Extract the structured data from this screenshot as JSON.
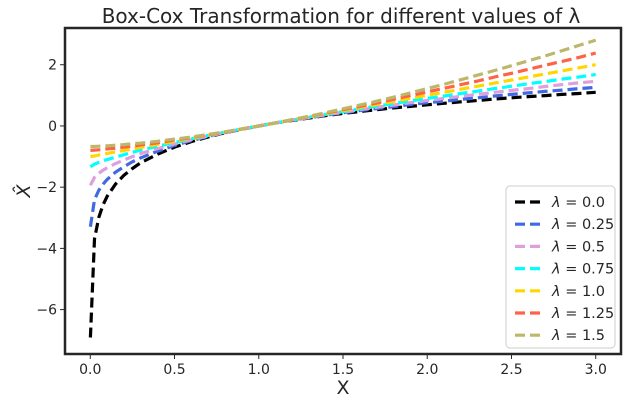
{
  "chart_data": {
    "type": "line",
    "title": "Box-Cox Transformation for different values of λ",
    "xlabel": "X",
    "ylabel": "X̂",
    "xlim": [
      -0.15,
      3.15
    ],
    "ylim": [
      -7.45,
      3.2
    ],
    "xticks": [
      0.0,
      0.5,
      1.0,
      1.5,
      2.0,
      2.5,
      3.0
    ],
    "xtick_labels": [
      "0.0",
      "0.5",
      "1.0",
      "1.5",
      "2.0",
      "2.5",
      "3.0"
    ],
    "yticks": [
      -6,
      -4,
      -2,
      0,
      2
    ],
    "ytick_labels": [
      "−6",
      "−4",
      "−2",
      "0",
      "2"
    ],
    "grid": false,
    "legend_position": "lower-right",
    "x": [
      0.001,
      0.025,
      0.05,
      0.075,
      0.1,
      0.15,
      0.2,
      0.25,
      0.3,
      0.4,
      0.5,
      0.6,
      0.7,
      0.8,
      0.9,
      1.0,
      1.1,
      1.2,
      1.3,
      1.4,
      1.5,
      1.6,
      1.7,
      1.8,
      1.9,
      2.0,
      2.1,
      2.2,
      2.3,
      2.4,
      2.5,
      2.6,
      2.7,
      2.8,
      2.9,
      3.0
    ],
    "series": [
      {
        "name": "λ = 0.0",
        "label_lambda": "λ",
        "label_value": "= 0.0",
        "color": "#000000",
        "values": [
          -6.91,
          -3.69,
          -3.0,
          -2.59,
          -2.3,
          -1.9,
          -1.61,
          -1.39,
          -1.2,
          -0.92,
          -0.69,
          -0.51,
          -0.36,
          -0.22,
          -0.11,
          0.0,
          0.1,
          0.18,
          0.26,
          0.34,
          0.41,
          0.47,
          0.53,
          0.59,
          0.64,
          0.69,
          0.74,
          0.79,
          0.83,
          0.88,
          0.92,
          0.96,
          0.99,
          1.03,
          1.06,
          1.1
        ]
      },
      {
        "name": "λ = 0.25",
        "label_lambda": "λ",
        "label_value": "= 0.25",
        "color": "#4169e1",
        "values": [
          -3.29,
          -2.41,
          -2.11,
          -1.91,
          -1.75,
          -1.51,
          -1.33,
          -1.17,
          -1.04,
          -0.82,
          -0.64,
          -0.48,
          -0.34,
          -0.22,
          -0.1,
          0.0,
          0.1,
          0.19,
          0.27,
          0.35,
          0.43,
          0.5,
          0.57,
          0.63,
          0.7,
          0.76,
          0.81,
          0.87,
          0.92,
          0.98,
          1.03,
          1.08,
          1.13,
          1.17,
          1.22,
          1.26
        ]
      },
      {
        "name": "λ = 0.5",
        "label_lambda": "λ",
        "label_value": "= 0.5",
        "color": "#dda0dd",
        "values": [
          -1.94,
          -1.68,
          -1.55,
          -1.45,
          -1.37,
          -1.23,
          -1.11,
          -1.0,
          -0.9,
          -0.74,
          -0.59,
          -0.45,
          -0.33,
          -0.21,
          -0.1,
          0.0,
          0.1,
          0.19,
          0.28,
          0.37,
          0.45,
          0.53,
          0.61,
          0.68,
          0.76,
          0.83,
          0.9,
          0.97,
          1.03,
          1.1,
          1.16,
          1.22,
          1.29,
          1.35,
          1.41,
          1.46
        ]
      },
      {
        "name": "λ = 0.75",
        "label_lambda": "λ",
        "label_value": "= 0.75",
        "color": "#00ffff",
        "values": [
          -1.33,
          -1.25,
          -1.19,
          -1.14,
          -1.1,
          -1.02,
          -0.94,
          -0.86,
          -0.79,
          -0.66,
          -0.54,
          -0.42,
          -0.31,
          -0.2,
          -0.1,
          0.0,
          0.1,
          0.19,
          0.29,
          0.38,
          0.47,
          0.56,
          0.65,
          0.73,
          0.82,
          0.9,
          0.98,
          1.06,
          1.14,
          1.22,
          1.3,
          1.38,
          1.45,
          1.53,
          1.6,
          1.68
        ]
      },
      {
        "name": "λ = 1.0",
        "label_lambda": "λ",
        "label_value": "= 1.0",
        "color": "#ffd700",
        "values": [
          -1.0,
          -0.98,
          -0.95,
          -0.93,
          -0.9,
          -0.85,
          -0.8,
          -0.75,
          -0.7,
          -0.6,
          -0.5,
          -0.4,
          -0.3,
          -0.2,
          -0.1,
          0.0,
          0.1,
          0.2,
          0.3,
          0.4,
          0.5,
          0.6,
          0.7,
          0.8,
          0.9,
          1.0,
          1.1,
          1.2,
          1.3,
          1.4,
          1.5,
          1.6,
          1.7,
          1.8,
          1.9,
          2.0
        ]
      },
      {
        "name": "λ = 1.25",
        "label_lambda": "λ",
        "label_value": "= 1.25",
        "color": "#ff6347",
        "values": [
          -0.8,
          -0.79,
          -0.78,
          -0.77,
          -0.75,
          -0.73,
          -0.69,
          -0.66,
          -0.62,
          -0.55,
          -0.46,
          -0.38,
          -0.29,
          -0.2,
          -0.1,
          0.0,
          0.1,
          0.2,
          0.31,
          0.42,
          0.53,
          0.64,
          0.75,
          0.87,
          0.99,
          1.11,
          1.23,
          1.35,
          1.47,
          1.6,
          1.72,
          1.85,
          1.98,
          2.11,
          2.24,
          2.38
        ]
      },
      {
        "name": "λ = 1.5",
        "label_lambda": "λ",
        "label_value": "= 1.5",
        "color": "#bdb76b",
        "values": [
          -0.67,
          -0.67,
          -0.66,
          -0.65,
          -0.65,
          -0.63,
          -0.61,
          -0.58,
          -0.56,
          -0.5,
          -0.43,
          -0.36,
          -0.28,
          -0.19,
          -0.1,
          0.0,
          0.1,
          0.21,
          0.32,
          0.44,
          0.56,
          0.68,
          0.81,
          0.94,
          1.08,
          1.22,
          1.36,
          1.51,
          1.66,
          1.81,
          1.97,
          2.13,
          2.29,
          2.46,
          2.63,
          2.8
        ]
      }
    ]
  }
}
